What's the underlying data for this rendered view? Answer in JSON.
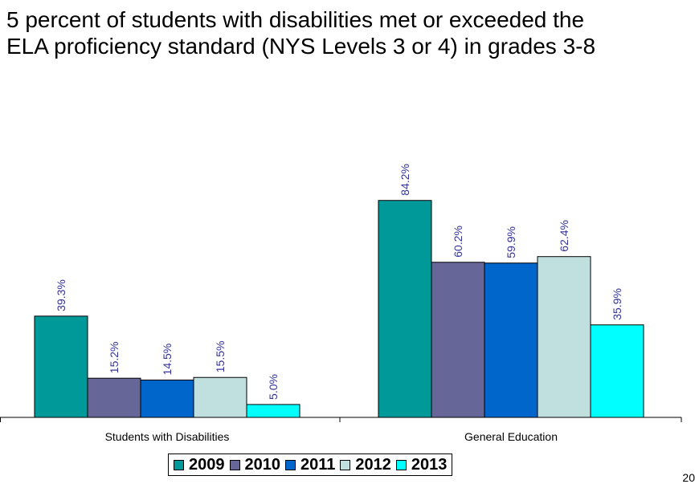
{
  "title_lines": [
    "5 percent of students with disabilities met or exceeded the",
    "ELA proficiency standard (NYS Levels 3 or 4) in grades 3-8"
  ],
  "page_number": "20",
  "chart_data": {
    "type": "bar",
    "categories": [
      "Students with Disabilities",
      "General Education"
    ],
    "series": [
      {
        "name": "2009",
        "values": [
          39.3,
          84.2
        ],
        "labels": [
          "39.3%",
          "84.2%"
        ],
        "color": "#009999"
      },
      {
        "name": "2010",
        "values": [
          15.2,
          60.2
        ],
        "labels": [
          "15.2%",
          "60.2%"
        ],
        "color": "#666699"
      },
      {
        "name": "2011",
        "values": [
          14.5,
          59.9
        ],
        "labels": [
          "14.5%",
          "59.9%"
        ],
        "color": "#0066CC"
      },
      {
        "name": "2012",
        "values": [
          15.5,
          62.4
        ],
        "labels": [
          "15.5%",
          "62.4%"
        ],
        "color": "#C0E0E0"
      },
      {
        "name": "2013",
        "values": [
          5.0,
          35.9
        ],
        "labels": [
          "5.0%",
          "35.9%"
        ],
        "color": "#00FFFF"
      }
    ],
    "ylim": [
      0,
      100
    ],
    "grid": false,
    "legend_position": "bottom",
    "label_color": "#333399"
  }
}
